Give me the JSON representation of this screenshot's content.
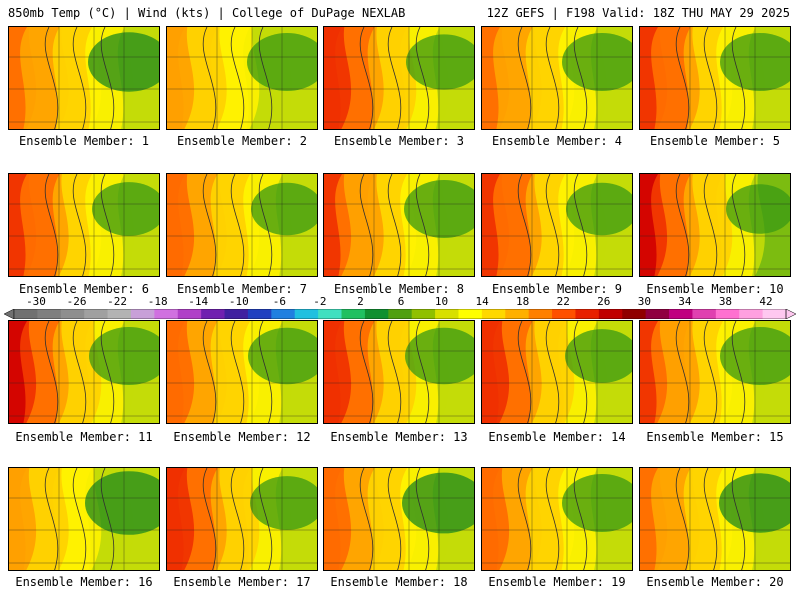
{
  "header": {
    "left": "850mb Temp (°C) | Wind (kts) | College of DuPage NEXLAB",
    "right": "12Z GEFS | F198 Valid: 18Z THU MAY 29 2025"
  },
  "member_label": "Ensemble Member:",
  "members": [
    {
      "id": "1",
      "hot": 0.55,
      "cool": 0.55
    },
    {
      "id": "2",
      "hot": 0.45,
      "cool": 0.5
    },
    {
      "id": "3",
      "hot": 0.75,
      "cool": 0.4
    },
    {
      "id": "4",
      "hot": 0.55,
      "cool": 0.5
    },
    {
      "id": "5",
      "hot": 0.7,
      "cool": 0.5
    },
    {
      "id": "6",
      "hot": 0.7,
      "cool": 0.35
    },
    {
      "id": "7",
      "hot": 0.6,
      "cool": 0.3
    },
    {
      "id": "8",
      "hot": 0.65,
      "cool": 0.5
    },
    {
      "id": "9",
      "hot": 0.7,
      "cool": 0.3
    },
    {
      "id": "10",
      "hot": 0.8,
      "cool": 0.2
    },
    {
      "id": "11",
      "hot": 0.8,
      "cool": 0.5
    },
    {
      "id": "12",
      "hot": 0.6,
      "cool": 0.45
    },
    {
      "id": "13",
      "hot": 0.75,
      "cool": 0.45
    },
    {
      "id": "14",
      "hot": 0.75,
      "cool": 0.35
    },
    {
      "id": "15",
      "hot": 0.65,
      "cool": 0.5
    },
    {
      "id": "16",
      "hot": 0.45,
      "cool": 0.7
    },
    {
      "id": "17",
      "hot": 0.75,
      "cool": 0.35
    },
    {
      "id": "18",
      "hot": 0.6,
      "cool": 0.6
    },
    {
      "id": "19",
      "hot": 0.6,
      "cool": 0.5
    },
    {
      "id": "20",
      "hot": 0.55,
      "cool": 0.55
    }
  ],
  "colorbar": {
    "labels": [
      "-30",
      "-26",
      "-22",
      "-18",
      "-14",
      "-10",
      "-6",
      "-2",
      "2",
      "6",
      "10",
      "14",
      "18",
      "22",
      "26",
      "30",
      "34",
      "38",
      "42"
    ],
    "colors": [
      "#707070",
      "#7f7f7f",
      "#8e8e8e",
      "#a0a0a0",
      "#b3b3b3",
      "#c8a0d8",
      "#d070e0",
      "#b040c8",
      "#7020b0",
      "#4020a0",
      "#2040c0",
      "#2080e0",
      "#20c0e0",
      "#40e0c0",
      "#20c060",
      "#109030",
      "#50a010",
      "#90c000",
      "#d8e000",
      "#ffff00",
      "#ffd800",
      "#ffb000",
      "#ff8000",
      "#ff5000",
      "#e82000",
      "#c00000",
      "#900000",
      "#900040",
      "#c00080",
      "#e040b0",
      "#ff70d0",
      "#ffa0e0",
      "#ffc8f0"
    ]
  },
  "palette": {
    "border": "#000000",
    "contour": "#303030",
    "state_lines": "#202020"
  }
}
